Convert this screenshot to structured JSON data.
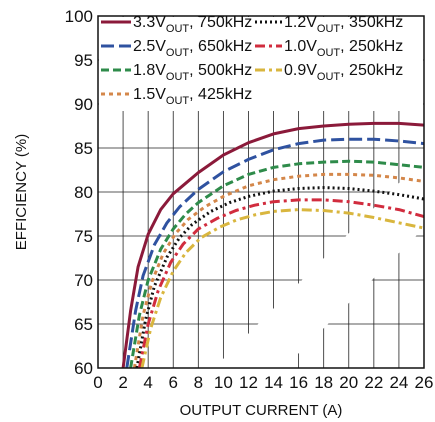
{
  "chart_data": {
    "type": "line",
    "xlabel": "OUTPUT CURRENT (A)",
    "ylabel": "EFFICIENCY (%)",
    "xlim": [
      0,
      26
    ],
    "ylim": [
      60,
      100
    ],
    "xticks": [
      0,
      2,
      4,
      6,
      8,
      10,
      12,
      14,
      16,
      18,
      20,
      22,
      24,
      26
    ],
    "yticks": [
      60,
      65,
      70,
      75,
      80,
      85,
      90,
      95,
      100
    ],
    "grid": true,
    "legend_position": "top",
    "series": [
      {
        "name": "3.3V_OUT, 750kHz",
        "name_main": "3.3V",
        "name_sub": "OUT",
        "name_tail": ", 750kHz",
        "color": "#8b1a3a",
        "dash": "solid",
        "x": [
          2.0,
          2.6,
          3.2,
          4,
          5,
          6,
          7,
          8,
          10,
          12,
          14,
          16,
          18,
          20,
          22,
          24,
          26
        ],
        "y": [
          60,
          66.5,
          71.5,
          75.2,
          78.0,
          79.8,
          81.0,
          82.2,
          84.2,
          85.6,
          86.6,
          87.2,
          87.5,
          87.7,
          87.8,
          87.8,
          87.6
        ]
      },
      {
        "name": "2.5V_OUT, 650kHz",
        "name_main": "2.5V",
        "name_sub": "OUT",
        "name_tail": ", 650kHz",
        "color": "#2f52a0",
        "dash": "long",
        "x": [
          2.3,
          3,
          3.6,
          4.5,
          5.5,
          6.5,
          8,
          10,
          12,
          14,
          16,
          18,
          20,
          22,
          24,
          26
        ],
        "y": [
          60,
          66.5,
          70.5,
          74.0,
          76.5,
          78.3,
          80.3,
          82.3,
          83.7,
          84.8,
          85.5,
          85.9,
          86.0,
          86.0,
          85.8,
          85.5
        ]
      },
      {
        "name": "1.8V_OUT, 500kHz",
        "name_main": "1.8V",
        "name_sub": "OUT",
        "name_tail": ", 500kHz",
        "color": "#2e8b4a",
        "dash": "medium",
        "x": [
          2.6,
          3.3,
          4,
          5,
          6,
          7,
          8,
          10,
          12,
          14,
          16,
          18,
          20,
          22,
          24,
          26
        ],
        "y": [
          60,
          66.0,
          70.0,
          73.5,
          75.8,
          77.5,
          78.8,
          80.7,
          82.0,
          82.8,
          83.2,
          83.4,
          83.5,
          83.4,
          83.1,
          82.8
        ]
      },
      {
        "name": "1.5V_OUT, 425kHz",
        "name_main": "1.5V",
        "name_sub": "OUT",
        "name_tail": ", 425kHz",
        "color": "#d4874a",
        "dash": "short",
        "x": [
          2.9,
          3.6,
          4.3,
          5.2,
          6.2,
          7.2,
          8.5,
          10,
          12,
          14,
          16,
          18,
          20,
          22,
          24,
          26
        ],
        "y": [
          60,
          66.0,
          69.8,
          73.0,
          75.3,
          76.9,
          78.3,
          79.5,
          80.7,
          81.4,
          81.8,
          82.0,
          82.0,
          81.9,
          81.6,
          81.2
        ]
      },
      {
        "name": "1.2V_OUT, 350kHz",
        "name_main": "1.2V",
        "name_sub": "OUT",
        "name_tail": ", 350kHz",
        "color": "#111111",
        "dash": "dotted",
        "x": [
          3.1,
          3.8,
          4.5,
          5.5,
          6.5,
          7.5,
          9,
          10.5,
          12,
          14,
          16,
          18,
          20,
          22,
          24,
          26
        ],
        "y": [
          60,
          65.5,
          69.3,
          72.6,
          74.8,
          76.3,
          77.8,
          78.8,
          79.5,
          80.1,
          80.4,
          80.5,
          80.4,
          80.1,
          79.7,
          79.2
        ]
      },
      {
        "name": "1.0V_OUT, 250kHz",
        "name_main": "1.0V",
        "name_sub": "OUT",
        "name_tail": ", 250kHz",
        "color": "#d12c3e",
        "dash": "dashdot",
        "x": [
          3.3,
          4,
          4.8,
          5.8,
          6.8,
          8,
          9.5,
          11,
          12.5,
          14,
          16,
          18,
          20,
          22,
          24,
          26
        ],
        "y": [
          60,
          65.0,
          68.8,
          72.0,
          74.1,
          75.8,
          77.0,
          77.9,
          78.5,
          78.9,
          79.1,
          79.1,
          78.9,
          78.5,
          78.0,
          77.2
        ]
      },
      {
        "name": "0.9V_OUT, 250kHz",
        "name_main": "0.9V",
        "name_sub": "OUT",
        "name_tail": ", 250kHz",
        "color": "#d9b63e",
        "dash": "dashdot",
        "x": [
          3.5,
          4.2,
          5,
          6,
          7,
          8.2,
          9.7,
          11,
          12.5,
          14,
          16,
          18,
          20,
          22,
          24,
          26
        ],
        "y": [
          60,
          64.5,
          68.0,
          71.0,
          73.1,
          74.8,
          76.0,
          76.8,
          77.4,
          77.8,
          78.0,
          77.9,
          77.6,
          77.1,
          76.5,
          75.9
        ]
      }
    ]
  }
}
